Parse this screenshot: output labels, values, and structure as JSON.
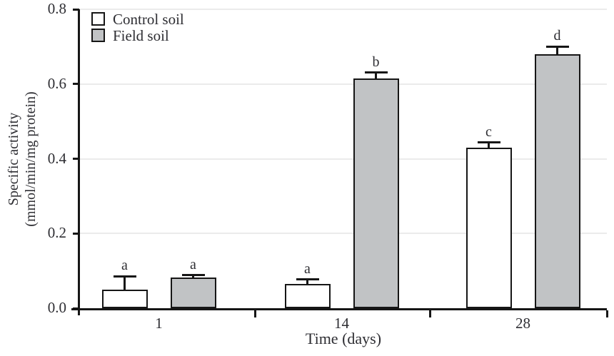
{
  "figure": {
    "ylabel_line1": "Specific activity",
    "ylabel_line2": "(mmol/min/mg protein)",
    "xlabel": "Time (days)"
  },
  "colors": {
    "axis": "#161616",
    "gridline": "#ebebeb",
    "text": "#2e2e33",
    "control_fill": "#ffffff",
    "field_fill": "#c1c3c5"
  },
  "chart_data": {
    "type": "bar",
    "title": "",
    "xlabel": "Time (days)",
    "ylabel": "Specific activity (mmol/min/mg protein)",
    "categories": [
      "1",
      "14",
      "28"
    ],
    "series": [
      {
        "name": "Control soil",
        "color": "#ffffff",
        "values": [
          0.05,
          0.065,
          0.43
        ],
        "errors": [
          0.035,
          0.012,
          0.013
        ],
        "sig_letters": [
          "a",
          "a",
          "c"
        ]
      },
      {
        "name": "Field soil",
        "color": "#c1c3c5",
        "values": [
          0.082,
          0.615,
          0.68
        ],
        "errors": [
          0.006,
          0.016,
          0.02
        ],
        "sig_letters": [
          "a",
          "b",
          "d"
        ]
      }
    ],
    "y_ticks": [
      "0.0",
      "0.2",
      "0.4",
      "0.6",
      "0.8"
    ],
    "ylim": [
      0,
      0.8
    ],
    "grid": "horizontal-light",
    "error_bars": "plus-direction-with-caps",
    "legend_position": "top-left-inside"
  }
}
